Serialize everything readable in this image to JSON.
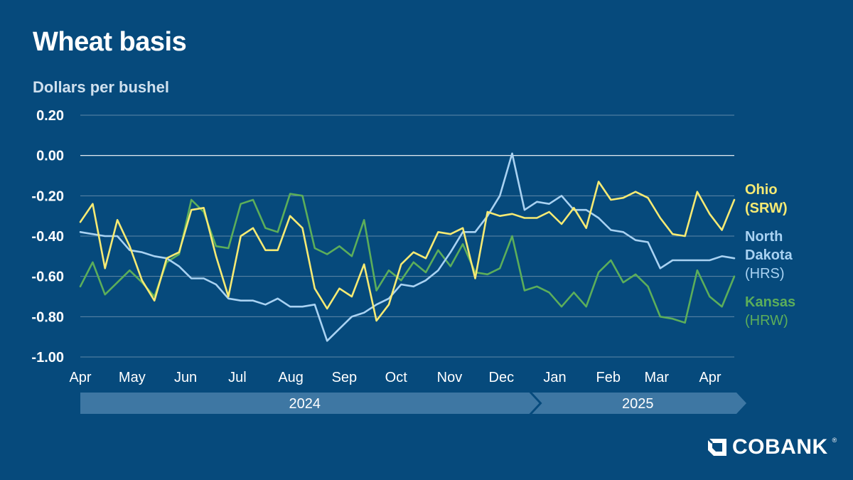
{
  "colors": {
    "background": "#064a7c",
    "gridline": "#5f88a8",
    "zero_line": "#ffffff",
    "axis_text": "#ffffff",
    "year_band": "#3e77a3",
    "ohio": "#f6ea73",
    "north_dakota": "#a9d2f2",
    "kansas": "#5cae5a"
  },
  "logo": {
    "icon": "cobank-logo-icon",
    "text": "COBANK",
    "tm": "®"
  },
  "chart_data": {
    "type": "line",
    "title": "Wheat basis",
    "ylabel": "Dollars per bushel",
    "xlabel": "",
    "ylim": [
      -1.0,
      0.2
    ],
    "yticks": [
      0.2,
      0.0,
      -0.2,
      -0.4,
      -0.6,
      -0.8,
      -1.0
    ],
    "ytick_labels": [
      "0.20",
      "0.00",
      "-0.20",
      "-0.40",
      "-0.60",
      "-0.80",
      "-1.00"
    ],
    "zero_line": true,
    "grid": true,
    "x_start": "2024-04-01",
    "x_end": "2025-04-15",
    "x_tick_labels": [
      {
        "date": "2024-04-01",
        "label": "Apr"
      },
      {
        "date": "2024-05-01",
        "label": "May"
      },
      {
        "date": "2024-06-01",
        "label": "Jun"
      },
      {
        "date": "2024-07-01",
        "label": "Jul"
      },
      {
        "date": "2024-08-01",
        "label": "Aug"
      },
      {
        "date": "2024-09-01",
        "label": "Sep"
      },
      {
        "date": "2024-10-01",
        "label": "Oct"
      },
      {
        "date": "2024-11-01",
        "label": "Nov"
      },
      {
        "date": "2024-12-01",
        "label": "Dec"
      },
      {
        "date": "2025-01-01",
        "label": "Jan"
      },
      {
        "date": "2025-02-01",
        "label": "Feb"
      },
      {
        "date": "2025-03-01",
        "label": "Mar"
      },
      {
        "date": "2025-04-01",
        "label": "Apr"
      }
    ],
    "years": [
      {
        "label": "2024",
        "start": "2024-04-01",
        "end": "2024-12-31"
      },
      {
        "label": "2025",
        "start": "2025-01-01",
        "end": "2025-04-15"
      }
    ],
    "legend_placement": "right",
    "series": [
      {
        "name": "Ohio",
        "class": "(SRW)",
        "color": "#f6ea73",
        "values": [
          [
            "2024-04-01",
            -0.33
          ],
          [
            "2024-04-09",
            -0.24
          ],
          [
            "2024-04-17",
            -0.56
          ],
          [
            "2024-04-25",
            -0.32
          ],
          [
            "2024-05-03",
            -0.45
          ],
          [
            "2024-05-11",
            -0.62
          ],
          [
            "2024-05-19",
            -0.72
          ],
          [
            "2024-05-27",
            -0.51
          ],
          [
            "2024-06-04",
            -0.48
          ],
          [
            "2024-06-12",
            -0.27
          ],
          [
            "2024-06-20",
            -0.26
          ],
          [
            "2024-06-28",
            -0.5
          ],
          [
            "2024-07-06",
            -0.7
          ],
          [
            "2024-07-14",
            -0.4
          ],
          [
            "2024-07-22",
            -0.36
          ],
          [
            "2024-07-30",
            -0.47
          ],
          [
            "2024-08-07",
            -0.47
          ],
          [
            "2024-08-15",
            -0.3
          ],
          [
            "2024-08-23",
            -0.36
          ],
          [
            "2024-08-31",
            -0.66
          ],
          [
            "2024-09-08",
            -0.76
          ],
          [
            "2024-09-16",
            -0.66
          ],
          [
            "2024-09-24",
            -0.7
          ],
          [
            "2024-10-02",
            -0.54
          ],
          [
            "2024-10-10",
            -0.82
          ],
          [
            "2024-10-18",
            -0.74
          ],
          [
            "2024-10-26",
            -0.54
          ],
          [
            "2024-11-03",
            -0.48
          ],
          [
            "2024-11-11",
            -0.51
          ],
          [
            "2024-11-19",
            -0.38
          ],
          [
            "2024-11-27",
            -0.39
          ],
          [
            "2024-12-05",
            -0.36
          ],
          [
            "2024-12-13",
            -0.61
          ],
          [
            "2024-12-21",
            -0.28
          ],
          [
            "2024-12-29",
            -0.3
          ],
          [
            "2025-01-06",
            -0.29
          ],
          [
            "2025-01-14",
            -0.31
          ],
          [
            "2025-01-22",
            -0.31
          ],
          [
            "2025-01-30",
            -0.28
          ],
          [
            "2025-02-07",
            -0.34
          ],
          [
            "2025-02-15",
            -0.26
          ],
          [
            "2025-02-23",
            -0.36
          ],
          [
            "2025-03-03",
            -0.13
          ],
          [
            "2025-03-11",
            -0.22
          ],
          [
            "2025-03-19",
            -0.21
          ],
          [
            "2025-03-27",
            -0.18
          ],
          [
            "2025-04-04",
            -0.21
          ],
          [
            "2025-04-12",
            -0.31
          ],
          [
            "2025-04-20",
            -0.39
          ],
          [
            "2025-04-28",
            -0.4
          ],
          [
            "2025-05-06",
            -0.18
          ],
          [
            "2025-05-14",
            -0.29
          ],
          [
            "2025-05-22",
            -0.37
          ],
          [
            "2025-05-30",
            -0.22
          ]
        ]
      },
      {
        "name": "North Dakota",
        "class": "(HRS)",
        "color": "#a9d2f2",
        "values": [
          [
            "2024-04-01",
            -0.38
          ],
          [
            "2024-04-09",
            -0.39
          ],
          [
            "2024-04-17",
            -0.4
          ],
          [
            "2024-04-25",
            -0.4
          ],
          [
            "2024-05-03",
            -0.47
          ],
          [
            "2024-05-11",
            -0.48
          ],
          [
            "2024-05-19",
            -0.5
          ],
          [
            "2024-05-27",
            -0.51
          ],
          [
            "2024-06-04",
            -0.55
          ],
          [
            "2024-06-12",
            -0.61
          ],
          [
            "2024-06-20",
            -0.61
          ],
          [
            "2024-06-28",
            -0.64
          ],
          [
            "2024-07-06",
            -0.71
          ],
          [
            "2024-07-14",
            -0.72
          ],
          [
            "2024-07-22",
            -0.72
          ],
          [
            "2024-07-30",
            -0.74
          ],
          [
            "2024-08-07",
            -0.71
          ],
          [
            "2024-08-15",
            -0.75
          ],
          [
            "2024-08-23",
            -0.75
          ],
          [
            "2024-08-31",
            -0.74
          ],
          [
            "2024-09-08",
            -0.92
          ],
          [
            "2024-09-16",
            -0.86
          ],
          [
            "2024-09-24",
            -0.8
          ],
          [
            "2024-10-02",
            -0.78
          ],
          [
            "2024-10-10",
            -0.74
          ],
          [
            "2024-10-18",
            -0.71
          ],
          [
            "2024-10-26",
            -0.64
          ],
          [
            "2024-11-03",
            -0.65
          ],
          [
            "2024-11-11",
            -0.62
          ],
          [
            "2024-11-19",
            -0.57
          ],
          [
            "2024-11-27",
            -0.48
          ],
          [
            "2024-12-05",
            -0.38
          ],
          [
            "2024-12-13",
            -0.38
          ],
          [
            "2024-12-21",
            -0.3
          ],
          [
            "2024-12-29",
            -0.2
          ],
          [
            "2025-01-06",
            0.01
          ],
          [
            "2025-01-14",
            -0.27
          ],
          [
            "2025-01-22",
            -0.23
          ],
          [
            "2025-01-30",
            -0.24
          ],
          [
            "2025-02-07",
            -0.2
          ],
          [
            "2025-02-15",
            -0.27
          ],
          [
            "2025-02-23",
            -0.27
          ],
          [
            "2025-03-03",
            -0.31
          ],
          [
            "2025-03-11",
            -0.37
          ],
          [
            "2025-03-19",
            -0.38
          ],
          [
            "2025-03-27",
            -0.42
          ],
          [
            "2025-04-04",
            -0.43
          ],
          [
            "2025-04-12",
            -0.56
          ],
          [
            "2025-04-20",
            -0.52
          ],
          [
            "2025-04-28",
            -0.52
          ],
          [
            "2025-05-06",
            -0.52
          ],
          [
            "2025-05-14",
            -0.52
          ],
          [
            "2025-05-22",
            -0.5
          ],
          [
            "2025-05-30",
            -0.51
          ]
        ]
      },
      {
        "name": "Kansas",
        "class": "(HRW)",
        "color": "#5cae5a",
        "values": [
          [
            "2024-04-01",
            -0.65
          ],
          [
            "2024-04-09",
            -0.53
          ],
          [
            "2024-04-17",
            -0.69
          ],
          [
            "2024-04-25",
            -0.63
          ],
          [
            "2024-05-03",
            -0.57
          ],
          [
            "2024-05-11",
            -0.63
          ],
          [
            "2024-05-19",
            -0.7
          ],
          [
            "2024-05-27",
            -0.53
          ],
          [
            "2024-06-04",
            -0.49
          ],
          [
            "2024-06-12",
            -0.22
          ],
          [
            "2024-06-20",
            -0.28
          ],
          [
            "2024-06-28",
            -0.45
          ],
          [
            "2024-07-06",
            -0.46
          ],
          [
            "2024-07-14",
            -0.24
          ],
          [
            "2024-07-22",
            -0.22
          ],
          [
            "2024-07-30",
            -0.36
          ],
          [
            "2024-08-07",
            -0.38
          ],
          [
            "2024-08-15",
            -0.19
          ],
          [
            "2024-08-23",
            -0.2
          ],
          [
            "2024-08-31",
            -0.46
          ],
          [
            "2024-09-08",
            -0.49
          ],
          [
            "2024-09-16",
            -0.45
          ],
          [
            "2024-09-24",
            -0.5
          ],
          [
            "2024-10-02",
            -0.32
          ],
          [
            "2024-10-10",
            -0.67
          ],
          [
            "2024-10-18",
            -0.57
          ],
          [
            "2024-10-26",
            -0.62
          ],
          [
            "2024-11-03",
            -0.53
          ],
          [
            "2024-11-11",
            -0.58
          ],
          [
            "2024-11-19",
            -0.47
          ],
          [
            "2024-11-27",
            -0.55
          ],
          [
            "2024-12-05",
            -0.44
          ],
          [
            "2024-12-13",
            -0.58
          ],
          [
            "2024-12-21",
            -0.59
          ],
          [
            "2024-12-29",
            -0.56
          ],
          [
            "2025-01-06",
            -0.4
          ],
          [
            "2025-01-14",
            -0.67
          ],
          [
            "2025-01-22",
            -0.65
          ],
          [
            "2025-01-30",
            -0.68
          ],
          [
            "2025-02-07",
            -0.75
          ],
          [
            "2025-02-15",
            -0.68
          ],
          [
            "2025-02-23",
            -0.75
          ],
          [
            "2025-03-03",
            -0.58
          ],
          [
            "2025-03-11",
            -0.52
          ],
          [
            "2025-03-19",
            -0.63
          ],
          [
            "2025-03-27",
            -0.59
          ],
          [
            "2025-04-04",
            -0.65
          ],
          [
            "2025-04-12",
            -0.8
          ],
          [
            "2025-04-20",
            -0.81
          ],
          [
            "2025-04-28",
            -0.83
          ],
          [
            "2025-05-06",
            -0.57
          ],
          [
            "2025-05-14",
            -0.7
          ],
          [
            "2025-05-22",
            -0.75
          ],
          [
            "2025-05-30",
            -0.6
          ]
        ]
      }
    ]
  }
}
